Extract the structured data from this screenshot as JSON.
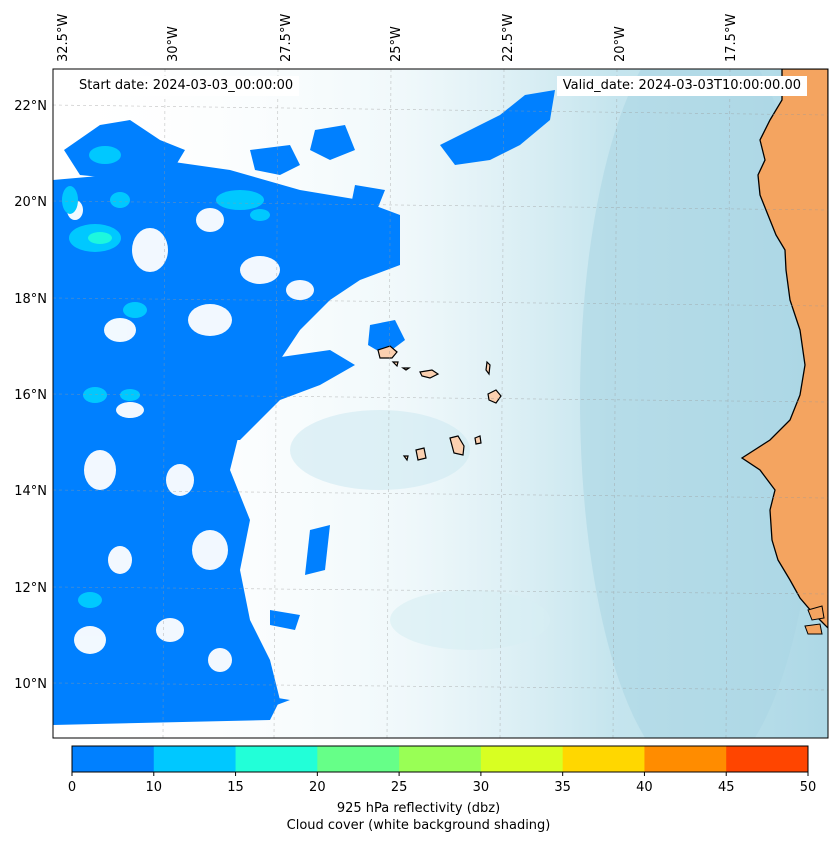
{
  "annotations": {
    "start_date": "Start date: 2024-03-03_00:00:00",
    "valid_date": "Valid_date: 2024-03-03T10:00:00.00"
  },
  "axes": {
    "lon_labels": [
      "32.5°W",
      "30°W",
      "27.5°W",
      "25°W",
      "22.5°W",
      "20°W",
      "17.5°W"
    ],
    "lat_labels": [
      "22°N",
      "20°N",
      "18°N",
      "16°N",
      "14°N",
      "12°N",
      "10°N"
    ],
    "grid": true
  },
  "colorbar": {
    "ticks": [
      "0",
      "10",
      "15",
      "20",
      "25",
      "30",
      "35",
      "40",
      "45",
      "50"
    ],
    "colors": [
      "#0080ff",
      "#00c8ff",
      "#22ffd8",
      "#66ff88",
      "#99ff55",
      "#d8ff22",
      "#ffd700",
      "#ff8c00",
      "#ff4500"
    ],
    "label_line1": "925 hPa reflectivity (dbz)",
    "label_line2": "Cloud cover (white background shading)"
  },
  "colors": {
    "land": "#f4a460",
    "islands": "#fbd0b0",
    "cloud_cover": "#b0dcea",
    "reflectivity_low": "#0080ff",
    "reflectivity_mid": "#00c8ff",
    "reflectivity_high": "#22ffd8"
  }
}
